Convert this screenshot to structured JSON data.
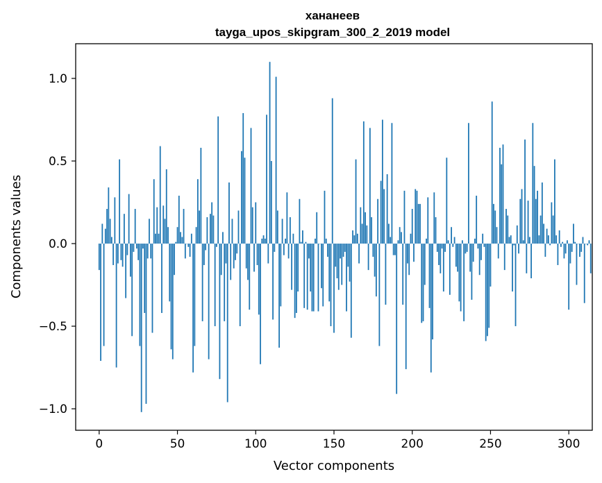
{
  "chart_data": {
    "type": "bar",
    "title_line1": "хананеев",
    "title_line2": "tayga_upos_skipgram_300_2_2019 model",
    "xlabel": "Vector components",
    "ylabel": "Components values",
    "xlim": [
      -15,
      315
    ],
    "ylim": [
      -1.13,
      1.21
    ],
    "x_ticks": [
      0,
      50,
      100,
      150,
      200,
      250,
      300
    ],
    "x_tick_labels": [
      "0",
      "50",
      "100",
      "150",
      "200",
      "250",
      "300"
    ],
    "y_ticks": [
      -1.0,
      -0.5,
      0.0,
      0.5,
      1.0
    ],
    "y_tick_labels": [
      "−1.0",
      "−0.5",
      "0.0",
      "0.5",
      "1.0"
    ],
    "bar_color": "#1f77b4",
    "grid": false,
    "values": [
      -0.16,
      -0.71,
      0.12,
      -0.62,
      0.09,
      0.21,
      0.34,
      0.15,
      0.04,
      -0.13,
      0.28,
      -0.75,
      -0.12,
      0.51,
      -0.1,
      -0.14,
      0.18,
      -0.33,
      -0.07,
      0.3,
      -0.2,
      -0.56,
      -0.05,
      0.21,
      -0.03,
      -0.1,
      -0.62,
      -1.02,
      -0.03,
      -0.42,
      -0.97,
      -0.09,
      0.15,
      -0.09,
      -0.54,
      0.39,
      0.06,
      0.22,
      0.06,
      0.59,
      -0.42,
      0.23,
      0.15,
      0.45,
      0.1,
      -0.35,
      -0.64,
      -0.7,
      -0.19,
      0.01,
      0.1,
      0.29,
      0.07,
      0.04,
      0.21,
      -0.09,
      0.0,
      -0.02,
      -0.08,
      0.06,
      -0.78,
      -0.62,
      0.1,
      0.39,
      0.2,
      0.58,
      -0.47,
      -0.13,
      -0.04,
      0.16,
      -0.7,
      0.18,
      0.25,
      0.17,
      -0.5,
      -0.02,
      0.77,
      -0.82,
      -0.19,
      0.07,
      -0.47,
      -0.12,
      -0.96,
      0.37,
      -0.22,
      0.15,
      -0.15,
      -0.1,
      -0.06,
      0.2,
      -0.5,
      0.56,
      0.79,
      0.52,
      -0.15,
      -0.22,
      -0.4,
      0.7,
      0.22,
      -0.17,
      0.25,
      -0.13,
      -0.43,
      -0.73,
      0.03,
      0.05,
      0.03,
      0.78,
      -0.12,
      1.1,
      0.5,
      -0.46,
      -0.05,
      1.01,
      0.2,
      -0.63,
      -0.38,
      0.15,
      -0.07,
      0.03,
      0.31,
      -0.09,
      0.16,
      -0.28,
      0.06,
      -0.45,
      -0.42,
      -0.29,
      0.27,
      0.01,
      0.08,
      -0.39,
      0.01,
      -0.4,
      -0.09,
      -0.29,
      -0.41,
      -0.41,
      0.03,
      0.19,
      -0.41,
      0.0,
      -0.27,
      -0.38,
      0.32,
      0.03,
      -0.08,
      -0.35,
      -0.5,
      0.88,
      -0.54,
      -0.14,
      -0.21,
      -0.28,
      -0.09,
      -0.25,
      -0.08,
      -0.05,
      -0.41,
      -0.14,
      -0.23,
      -0.57,
      0.08,
      0.05,
      0.51,
      0.06,
      -0.12,
      0.22,
      0.12,
      0.74,
      0.19,
      0.11,
      -0.16,
      0.7,
      0.16,
      -0.08,
      -0.2,
      -0.32,
      0.27,
      -0.62,
      0.38,
      0.75,
      0.33,
      -0.37,
      0.42,
      0.12,
      0.04,
      0.73,
      -0.07,
      -0.07,
      -0.91,
      0.02,
      0.1,
      0.07,
      -0.37,
      0.32,
      -0.76,
      -0.12,
      -0.19,
      0.06,
      0.21,
      -0.11,
      0.33,
      0.32,
      0.24,
      0.24,
      -0.48,
      -0.47,
      -0.25,
      0.03,
      0.28,
      -0.39,
      -0.78,
      -0.58,
      0.31,
      0.16,
      -0.05,
      -0.13,
      -0.18,
      -0.03,
      -0.29,
      -0.05,
      0.52,
      0.02,
      -0.31,
      0.1,
      -0.02,
      0.04,
      -0.14,
      -0.17,
      -0.35,
      -0.41,
      0.02,
      -0.47,
      -0.06,
      -0.05,
      0.73,
      -0.17,
      -0.34,
      -0.11,
      0.03,
      0.29,
      -0.03,
      -0.19,
      -0.1,
      0.06,
      -0.02,
      -0.59,
      -0.56,
      -0.51,
      -0.26,
      0.86,
      0.24,
      0.2,
      0.1,
      -0.09,
      0.58,
      0.48,
      0.6,
      -0.16,
      0.21,
      0.17,
      0.04,
      0.05,
      -0.29,
      -0.01,
      -0.5,
      0.11,
      -0.06,
      0.27,
      0.33,
      0.02,
      0.63,
      -0.18,
      0.26,
      0.04,
      -0.21,
      0.73,
      0.47,
      0.27,
      0.32,
      0.05,
      0.17,
      0.37,
      0.12,
      -0.08,
      0.09,
      0.05,
      -0.01,
      0.25,
      0.17,
      0.51,
      0.05,
      -0.13,
      0.08,
      -0.02,
      0.01,
      -0.09,
      -0.06,
      0.02,
      -0.4,
      -0.12,
      -0.05,
      0.12,
      0.01,
      -0.25,
      0.0,
      -0.08,
      -0.05,
      0.04,
      -0.36,
      0.0,
      -0.01,
      0.02,
      -0.18
    ]
  }
}
